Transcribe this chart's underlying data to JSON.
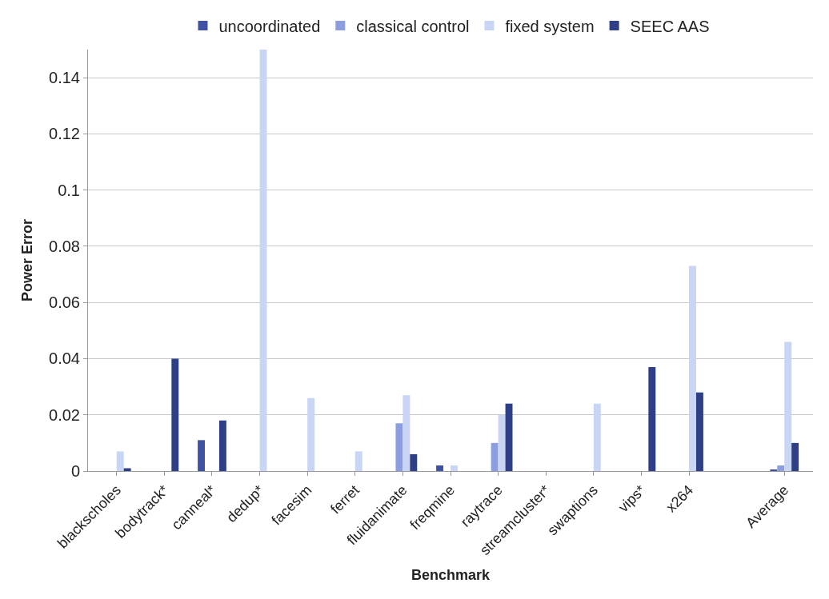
{
  "chart_data": {
    "type": "bar",
    "xlabel": "Benchmark",
    "ylabel": "Power Error",
    "categories": [
      "blackscholes",
      "bodytrack*",
      "canneal*",
      "dedup*",
      "facesim",
      "ferret",
      "fluidanimate",
      "freqmine",
      "raytrace",
      "streamcluster*",
      "swaptions",
      "vips*",
      "x264",
      null,
      "Average"
    ],
    "series": [
      {
        "name": "uncoordinated",
        "color": "#3f51a3",
        "values": [
          null,
          null,
          0.011,
          null,
          null,
          null,
          null,
          0.002,
          null,
          null,
          null,
          null,
          null,
          null,
          0.0005
        ]
      },
      {
        "name": "classical control",
        "color": "#8c9ee0",
        "values": [
          null,
          null,
          null,
          null,
          null,
          null,
          0.017,
          null,
          0.01,
          null,
          null,
          null,
          null,
          null,
          0.002
        ]
      },
      {
        "name": "fixed system",
        "color": "#c9d5f5",
        "values": [
          0.007,
          null,
          null,
          0.15,
          0.026,
          0.007,
          0.027,
          0.002,
          0.02,
          null,
          0.024,
          null,
          0.073,
          null,
          0.046
        ]
      },
      {
        "name": "SEEC AAS",
        "color": "#2f3f86",
        "values": [
          0.001,
          0.04,
          0.018,
          null,
          null,
          null,
          0.006,
          null,
          0.024,
          null,
          null,
          0.037,
          0.028,
          null,
          0.01
        ]
      }
    ],
    "ylim": [
      0,
      0.15
    ],
    "yticks": [
      0,
      0.02,
      0.04,
      0.06,
      0.08,
      0.1,
      0.12,
      0.14
    ],
    "grid": "y",
    "legend": "top"
  }
}
